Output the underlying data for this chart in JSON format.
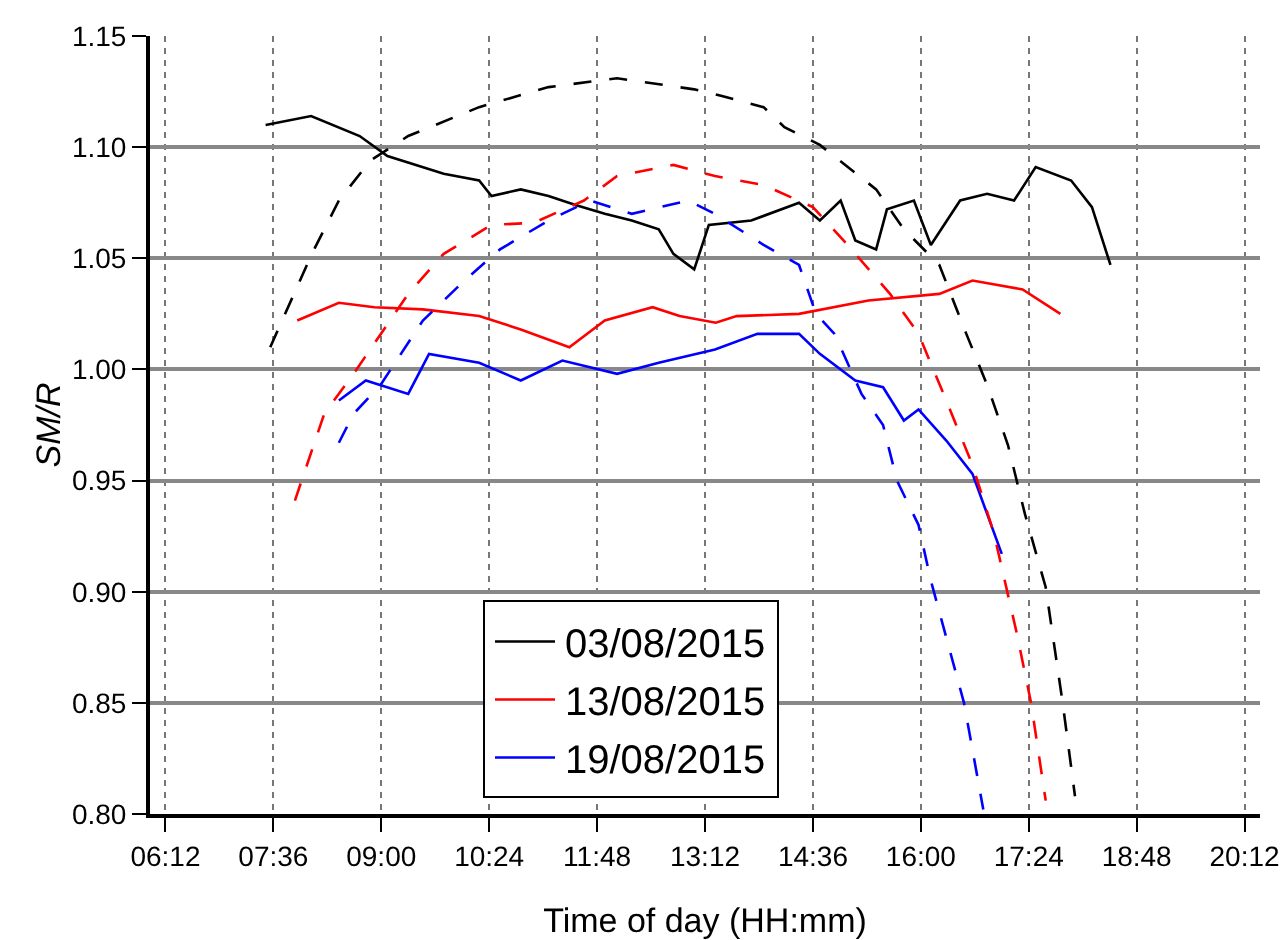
{
  "chart_data": {
    "type": "line",
    "xlabel": "Time of day (HH:mm)",
    "ylabel": "SM/R",
    "xlim": [
      6.0,
      20.4
    ],
    "xticks": [
      {
        "value": 6.2,
        "label": "06:12"
      },
      {
        "value": 7.6,
        "label": "07:36"
      },
      {
        "value": 9.0,
        "label": "09:00"
      },
      {
        "value": 10.4,
        "label": "10:24"
      },
      {
        "value": 11.8,
        "label": "11:48"
      },
      {
        "value": 13.2,
        "label": "13:12"
      },
      {
        "value": 14.6,
        "label": "14:36"
      },
      {
        "value": 16.0,
        "label": "16:00"
      },
      {
        "value": 17.4,
        "label": "17:24"
      },
      {
        "value": 18.8,
        "label": "18:48"
      },
      {
        "value": 20.2,
        "label": "20:12"
      }
    ],
    "ylim": [
      0.8,
      1.15
    ],
    "yticks": [
      {
        "value": 0.8,
        "label": "0.80"
      },
      {
        "value": 0.85,
        "label": "0.85"
      },
      {
        "value": 0.9,
        "label": "0.90"
      },
      {
        "value": 0.95,
        "label": "0.95"
      },
      {
        "value": 1.0,
        "label": "1.00"
      },
      {
        "value": 1.05,
        "label": "1.05"
      },
      {
        "value": 1.1,
        "label": "1.10"
      },
      {
        "value": 1.15,
        "label": "1.15"
      }
    ],
    "grid": true,
    "legend": "bottom",
    "marker": "none",
    "series": [
      {
        "name": "03/08/2015",
        "color": "#000000",
        "line_style": "solid",
        "x": [
          7.5,
          8.09,
          8.72,
          9.08,
          9.81,
          10.27,
          10.43,
          10.81,
          11.17,
          11.52,
          11.9,
          12.25,
          12.6,
          12.79,
          13.06,
          13.25,
          13.8,
          14.42,
          14.69,
          14.96,
          15.15,
          15.42,
          15.56,
          15.91,
          16.13,
          16.51,
          16.86,
          17.21,
          17.49,
          17.95,
          18.22,
          18.46
        ],
        "values": [
          1.11,
          1.114,
          1.105,
          1.096,
          1.088,
          1.085,
          1.078,
          1.081,
          1.078,
          1.074,
          1.07,
          1.067,
          1.063,
          1.052,
          1.045,
          1.065,
          1.067,
          1.075,
          1.067,
          1.076,
          1.058,
          1.054,
          1.072,
          1.076,
          1.056,
          1.076,
          1.079,
          1.076,
          1.091,
          1.085,
          1.073,
          1.047
        ]
      },
      {
        "name": "13/08/2015",
        "color": "#ff0000",
        "line_style": "solid",
        "x": [
          7.91,
          8.45,
          8.91,
          9.54,
          10.27,
          10.81,
          11.44,
          11.9,
          12.52,
          12.87,
          13.34,
          13.61,
          14.42,
          15.32,
          16.24,
          16.67,
          17.32,
          17.81
        ],
        "values": [
          1.022,
          1.03,
          1.028,
          1.027,
          1.024,
          1.018,
          1.01,
          1.022,
          1.028,
          1.024,
          1.021,
          1.024,
          1.025,
          1.031,
          1.034,
          1.04,
          1.036,
          1.025
        ]
      },
      {
        "name": "19/08/2015",
        "color": "#0000ff",
        "line_style": "solid",
        "x": [
          8.45,
          8.8,
          9.35,
          9.62,
          10.27,
          10.81,
          11.35,
          12.06,
          12.6,
          13.33,
          13.88,
          14.42,
          14.69,
          15.15,
          15.51,
          15.78,
          15.97,
          16.33,
          16.67,
          17.05
        ],
        "values": [
          0.986,
          0.995,
          0.989,
          1.007,
          1.003,
          0.995,
          1.004,
          0.998,
          1.003,
          1.009,
          1.016,
          1.016,
          1.007,
          0.995,
          0.992,
          0.977,
          0.982,
          0.968,
          0.953,
          0.917
        ]
      },
      {
        "color": "#000000",
        "line_style": "dashed",
        "x": [
          7.56,
          8.1,
          8.45,
          8.86,
          9.35,
          10.27,
          11.17,
          12.06,
          13.06,
          13.42,
          13.96,
          14.23,
          14.69,
          15.42,
          15.78,
          16.24,
          16.59,
          16.86,
          17.13,
          17.35,
          17.62,
          17.84,
          18.0
        ],
        "values": [
          1.01,
          1.052,
          1.076,
          1.094,
          1.105,
          1.118,
          1.127,
          1.131,
          1.126,
          1.123,
          1.118,
          1.109,
          1.101,
          1.081,
          1.063,
          1.047,
          1.016,
          0.993,
          0.966,
          0.935,
          0.902,
          0.85,
          0.808
        ]
      },
      {
        "color": "#ff0000",
        "line_style": "dashed",
        "x": [
          7.88,
          8.26,
          8.64,
          9.35,
          9.81,
          10.43,
          10.98,
          11.63,
          12.06,
          12.79,
          13.33,
          13.96,
          14.6,
          15.05,
          15.6,
          15.97,
          16.33,
          16.67,
          16.95,
          17.24,
          17.43,
          17.62
        ],
        "values": [
          0.941,
          0.98,
          0.998,
          1.034,
          1.052,
          1.065,
          1.066,
          1.076,
          1.087,
          1.092,
          1.087,
          1.083,
          1.073,
          1.056,
          1.034,
          1.016,
          0.986,
          0.957,
          0.926,
          0.882,
          0.85,
          0.806
        ]
      },
      {
        "color": "#0000ff",
        "line_style": "dashed",
        "x": [
          8.45,
          8.64,
          8.99,
          9.54,
          10.08,
          10.54,
          11.17,
          11.71,
          12.25,
          12.98,
          13.33,
          13.96,
          14.42,
          14.64,
          14.88,
          15.23,
          15.51,
          15.69,
          15.97,
          16.13,
          16.56,
          16.81
        ],
        "values": [
          0.967,
          0.98,
          0.993,
          1.022,
          1.04,
          1.054,
          1.067,
          1.076,
          1.07,
          1.076,
          1.07,
          1.056,
          1.047,
          1.025,
          1.016,
          0.989,
          0.975,
          0.95,
          0.93,
          0.905,
          0.85,
          0.802
        ]
      }
    ]
  }
}
